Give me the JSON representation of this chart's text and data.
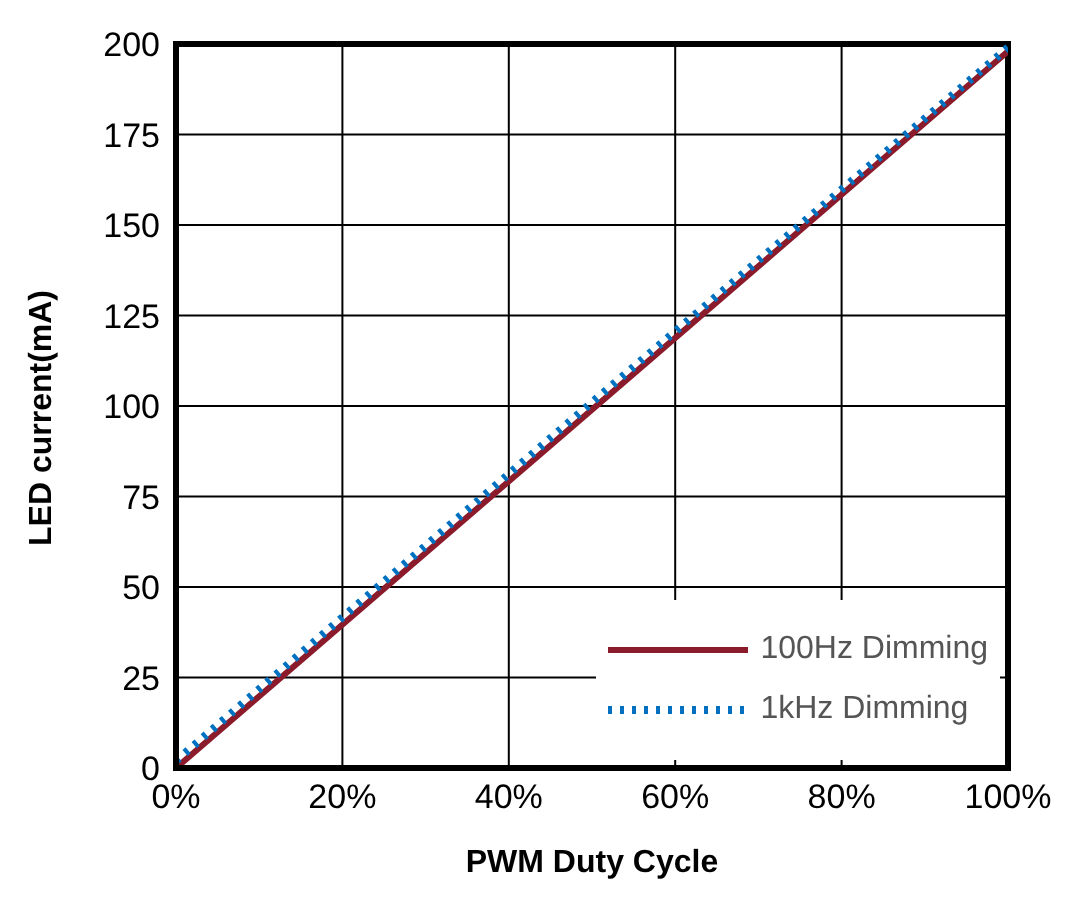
{
  "chart_data": {
    "type": "line",
    "xlabel": "PWM Duty Cycle",
    "ylabel": "LED current(mA)",
    "x": [
      0,
      50,
      100
    ],
    "series": [
      {
        "name": "100Hz Dimming",
        "color": "#8b1a2b",
        "values": [
          0,
          99,
          198
        ],
        "line_style": "solid"
      },
      {
        "name": "1kHz Dimming",
        "color": "#0070c0",
        "values": [
          2,
          101,
          199
        ],
        "line_style": "dotted"
      }
    ],
    "xlim": [
      0,
      100
    ],
    "xticks": [
      {
        "value": 0,
        "label": "0%"
      },
      {
        "value": 20,
        "label": "20%"
      },
      {
        "value": 40,
        "label": "40%"
      },
      {
        "value": 60,
        "label": "60%"
      },
      {
        "value": 80,
        "label": "80%"
      },
      {
        "value": 100,
        "label": "100%"
      }
    ],
    "ylim": [
      0,
      200
    ],
    "yticks": [
      0,
      25,
      50,
      75,
      100,
      125,
      150,
      175,
      200
    ],
    "grid": true,
    "legend": "bottom right",
    "marker": "none"
  }
}
